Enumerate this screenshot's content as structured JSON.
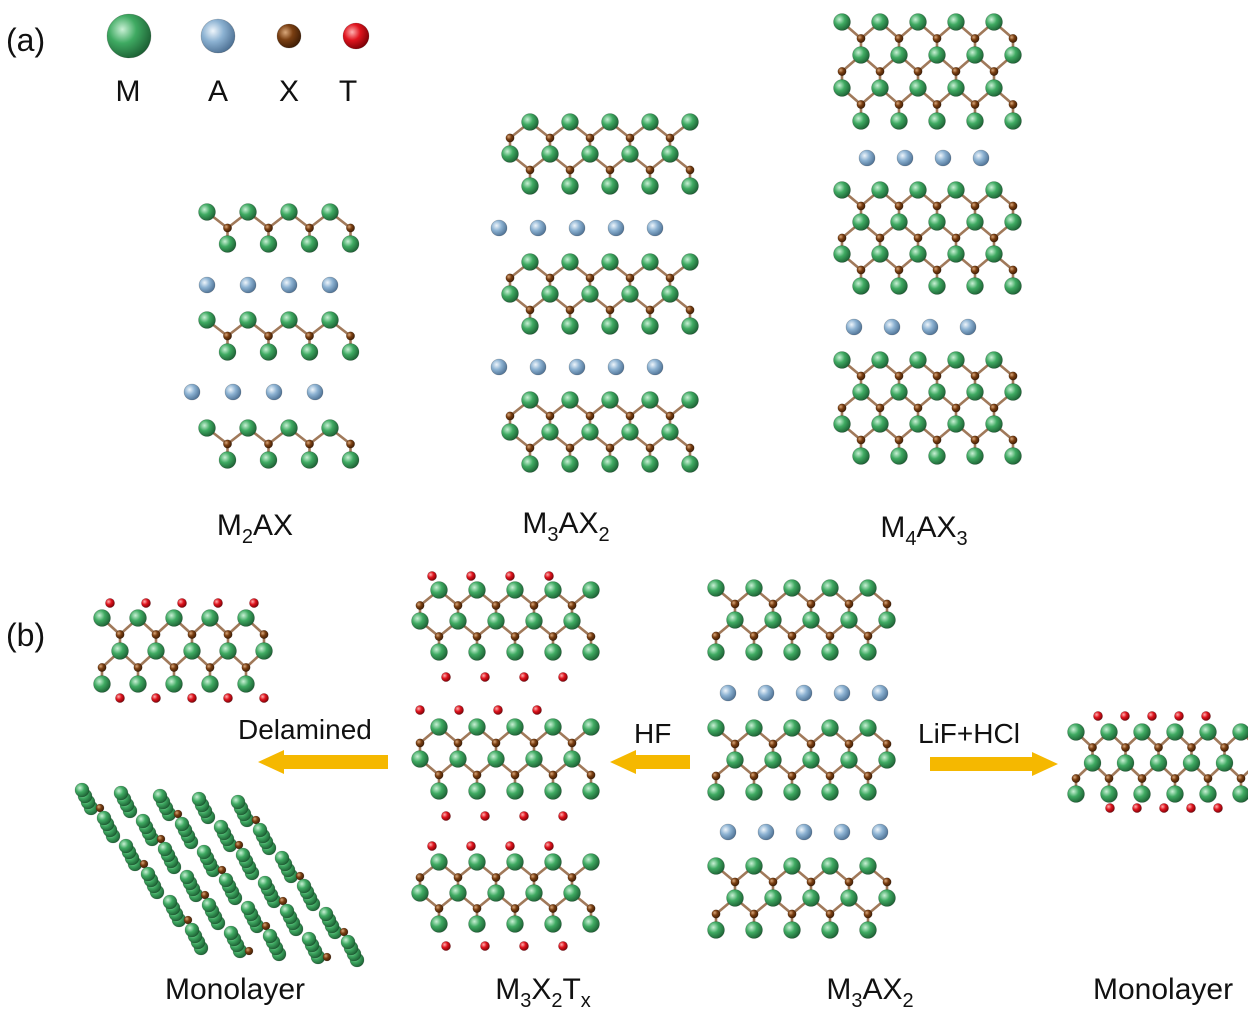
{
  "panels": {
    "a": "(a)",
    "b": "(b)"
  },
  "legend": [
    {
      "symbol": "M",
      "color": "#2f9a55"
    },
    {
      "symbol": "A",
      "color": "#7fa6c8"
    },
    {
      "symbol": "X",
      "color": "#7a3f12"
    },
    {
      "symbol": "T",
      "color": "#e0141e"
    }
  ],
  "structures_a": [
    {
      "main": "M",
      "sub1": "2",
      "mid": "AX",
      "sub2": ""
    },
    {
      "main": "M",
      "sub1": "3",
      "mid": "AX",
      "sub2": "2"
    },
    {
      "main": "M",
      "sub1": "4",
      "mid": "AX",
      "sub2": "3"
    }
  ],
  "arrows": {
    "delamination": "Delamined",
    "hf": "HF",
    "lif_hcl": "LiF+HCl"
  },
  "structures_b": {
    "monolayer_left": "Monolayer",
    "mxene": {
      "main": "M",
      "sub1": "3",
      "mid": "X",
      "sub2": "2",
      "end": "T",
      "sub3": "x"
    },
    "max": {
      "main": "M",
      "sub1": "3",
      "mid": "AX",
      "sub2": "2"
    },
    "monolayer_right": "Monolayer"
  },
  "colors": {
    "atom_m": "#2f9a55",
    "atom_a": "#7fa6c8",
    "atom_x": "#7a3f12",
    "atom_t": "#e0141e",
    "arrow": "#f5b800",
    "bond": "#a0795a"
  }
}
